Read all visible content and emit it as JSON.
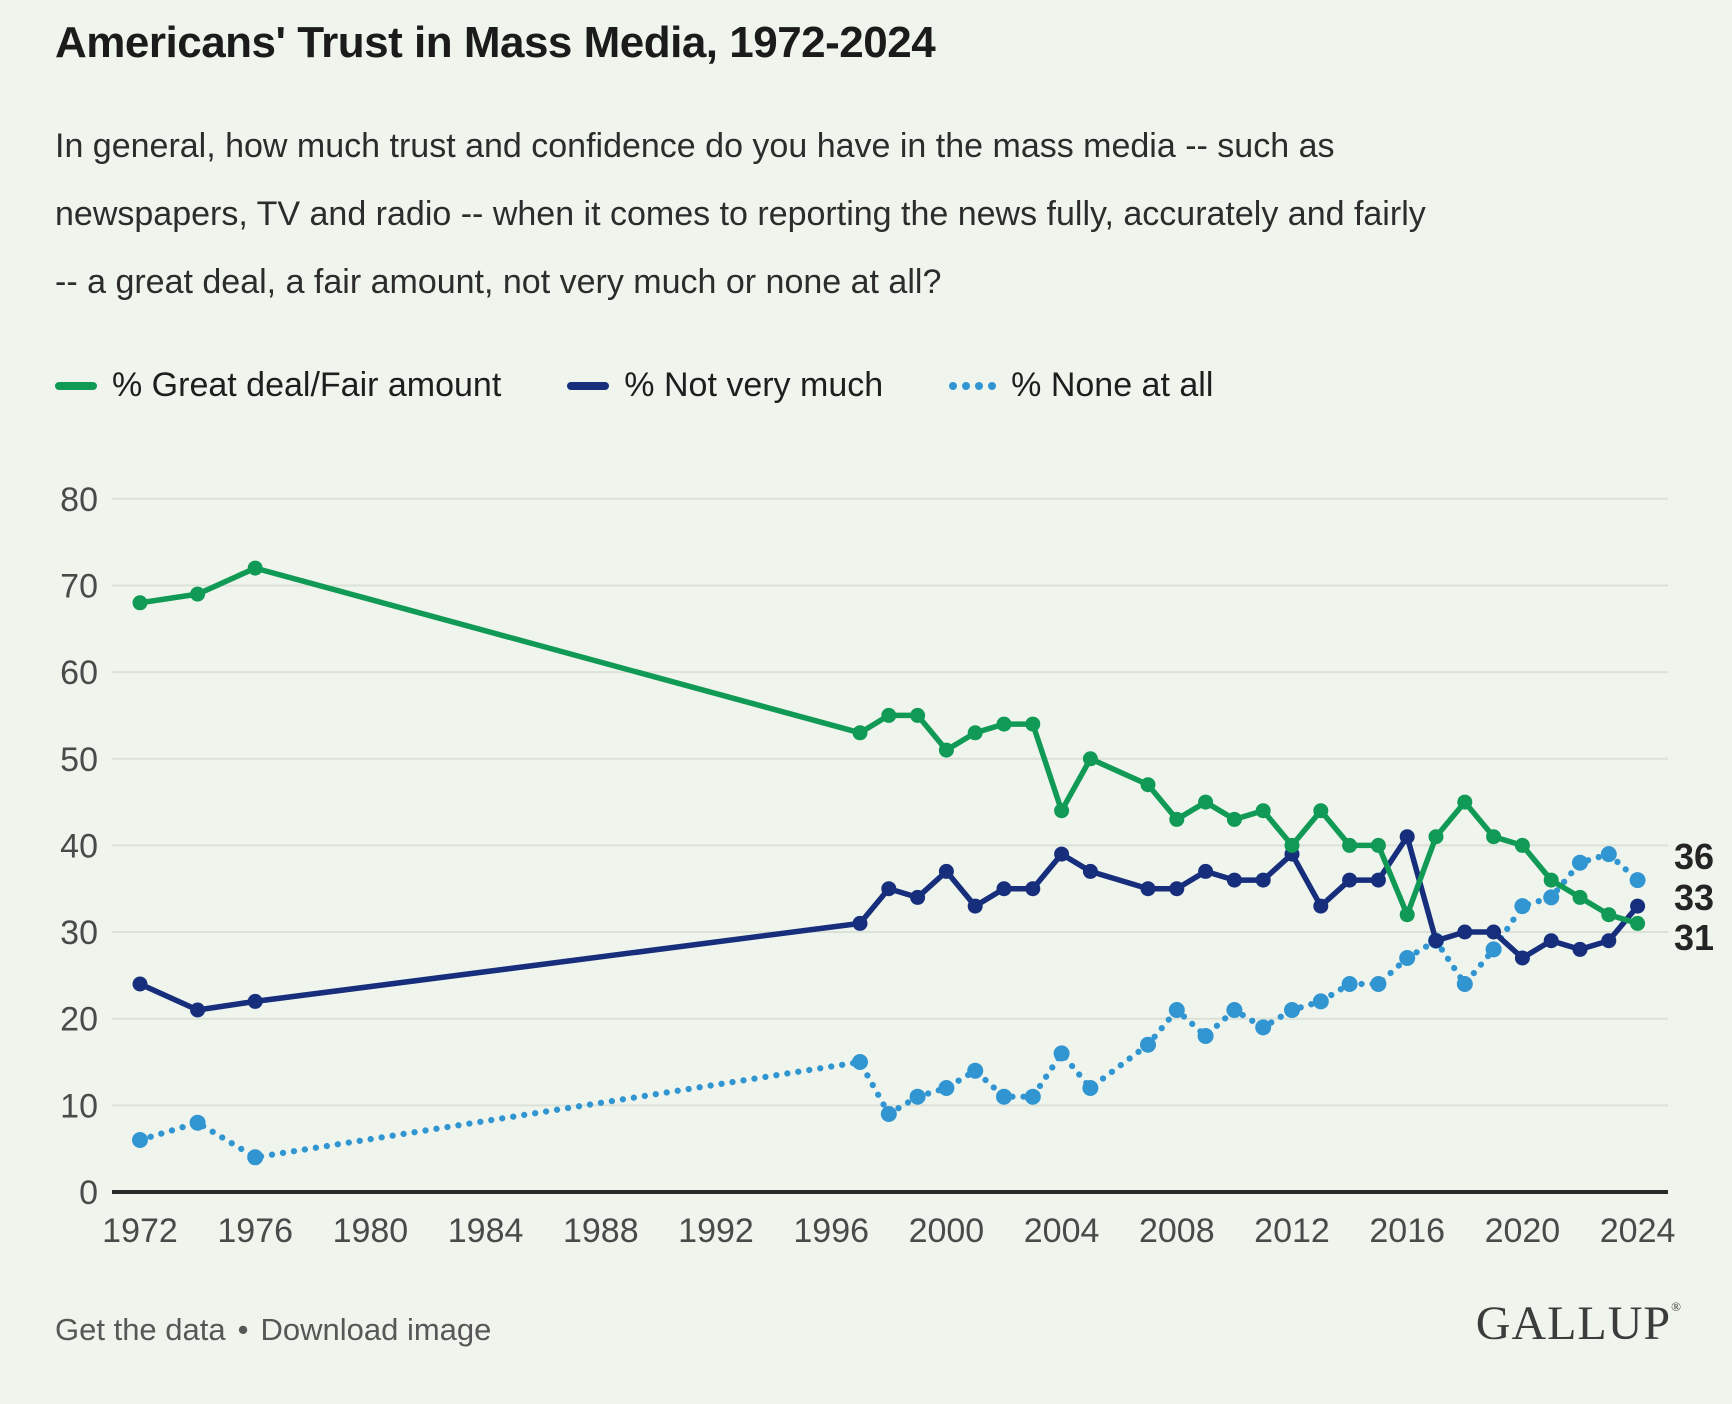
{
  "title": "Americans' Trust in Mass Media, 1972-2024",
  "subtitle_lines": [
    "In general, how much trust and confidence do you have in the mass media -- such as",
    "newspapers, TV and radio -- when it comes to reporting the news fully, accurately and fairly",
    "-- a great deal, a fair amount, not very much or none at all?"
  ],
  "legend": {
    "items": [
      {
        "label": "% Great deal/Fair amount",
        "color": "#109a56",
        "style": "solid"
      },
      {
        "label": "% Not very much",
        "color": "#162e7c",
        "style": "solid"
      },
      {
        "label": "% None at all",
        "color": "#3195d2",
        "style": "dotted"
      }
    ]
  },
  "chart_data": {
    "type": "line",
    "title": "Americans' Trust in Mass Media, 1972-2024",
    "xlabel": "",
    "ylabel": "",
    "ylim": [
      0,
      80
    ],
    "yticks": [
      0,
      10,
      20,
      30,
      40,
      50,
      60,
      70,
      80
    ],
    "xticks": [
      1972,
      1976,
      1980,
      1984,
      1988,
      1992,
      1996,
      2000,
      2004,
      2008,
      2012,
      2016,
      2020,
      2024
    ],
    "grid": true,
    "legend_position": "top-left",
    "series": [
      {
        "name": "% None at all",
        "id": "none-at-all",
        "color": "#3195d2",
        "style": "dotted",
        "points": [
          [
            1972,
            6
          ],
          [
            1974,
            8
          ],
          [
            1976,
            4
          ],
          [
            1997,
            15
          ],
          [
            1998,
            9
          ],
          [
            1999,
            11
          ],
          [
            2000,
            12
          ],
          [
            2001,
            14
          ],
          [
            2002,
            11
          ],
          [
            2003,
            11
          ],
          [
            2004,
            16
          ],
          [
            2005,
            12
          ],
          [
            2007,
            17
          ],
          [
            2008,
            21
          ],
          [
            2009,
            18
          ],
          [
            2010,
            21
          ],
          [
            2011,
            19
          ],
          [
            2012,
            21
          ],
          [
            2013,
            22
          ],
          [
            2014,
            24
          ],
          [
            2015,
            24
          ],
          [
            2016,
            27
          ],
          [
            2017,
            29
          ],
          [
            2018,
            24
          ],
          [
            2019,
            28
          ],
          [
            2020,
            33
          ],
          [
            2021,
            34
          ],
          [
            2022,
            38
          ],
          [
            2023,
            39
          ],
          [
            2024,
            36
          ]
        ]
      },
      {
        "name": "% Not very much",
        "id": "not-very-much",
        "color": "#162e7c",
        "style": "solid",
        "points": [
          [
            1972,
            24
          ],
          [
            1974,
            21
          ],
          [
            1976,
            22
          ],
          [
            1997,
            31
          ],
          [
            1998,
            35
          ],
          [
            1999,
            34
          ],
          [
            2000,
            37
          ],
          [
            2001,
            33
          ],
          [
            2002,
            35
          ],
          [
            2003,
            35
          ],
          [
            2004,
            39
          ],
          [
            2005,
            37
          ],
          [
            2007,
            35
          ],
          [
            2008,
            35
          ],
          [
            2009,
            37
          ],
          [
            2010,
            36
          ],
          [
            2011,
            36
          ],
          [
            2012,
            39
          ],
          [
            2013,
            33
          ],
          [
            2014,
            36
          ],
          [
            2015,
            36
          ],
          [
            2016,
            41
          ],
          [
            2017,
            29
          ],
          [
            2018,
            30
          ],
          [
            2019,
            30
          ],
          [
            2020,
            27
          ],
          [
            2021,
            29
          ],
          [
            2022,
            28
          ],
          [
            2023,
            29
          ],
          [
            2024,
            33
          ]
        ]
      },
      {
        "name": "% Great deal/Fair amount",
        "id": "great-deal-fair-amount",
        "color": "#109a56",
        "style": "solid",
        "points": [
          [
            1972,
            68
          ],
          [
            1974,
            69
          ],
          [
            1976,
            72
          ],
          [
            1997,
            53
          ],
          [
            1998,
            55
          ],
          [
            1999,
            55
          ],
          [
            2000,
            51
          ],
          [
            2001,
            53
          ],
          [
            2002,
            54
          ],
          [
            2003,
            54
          ],
          [
            2004,
            44
          ],
          [
            2005,
            50
          ],
          [
            2007,
            47
          ],
          [
            2008,
            43
          ],
          [
            2009,
            45
          ],
          [
            2010,
            43
          ],
          [
            2011,
            44
          ],
          [
            2012,
            40
          ],
          [
            2013,
            44
          ],
          [
            2014,
            40
          ],
          [
            2015,
            40
          ],
          [
            2016,
            32
          ],
          [
            2017,
            41
          ],
          [
            2018,
            45
          ],
          [
            2019,
            41
          ],
          [
            2020,
            40
          ],
          [
            2021,
            36
          ],
          [
            2022,
            34
          ],
          [
            2023,
            32
          ],
          [
            2024,
            31
          ]
        ]
      }
    ],
    "end_labels": [
      {
        "text": "36",
        "series": "none-at-all"
      },
      {
        "text": "33",
        "series": "not-very-much"
      },
      {
        "text": "31",
        "series": "great-deal-fair-amount"
      }
    ]
  },
  "footer": {
    "get_data_label": "Get the data",
    "separator": "•",
    "download_label": "Download image",
    "brand": "GALLUP",
    "brand_mark": "®"
  },
  "colors": {
    "background": "#eff5ec",
    "gridline": "#dce1d8",
    "axis_line": "#2b2b2b",
    "axis_label": "#4a4a4a",
    "end_label": "#242424"
  }
}
